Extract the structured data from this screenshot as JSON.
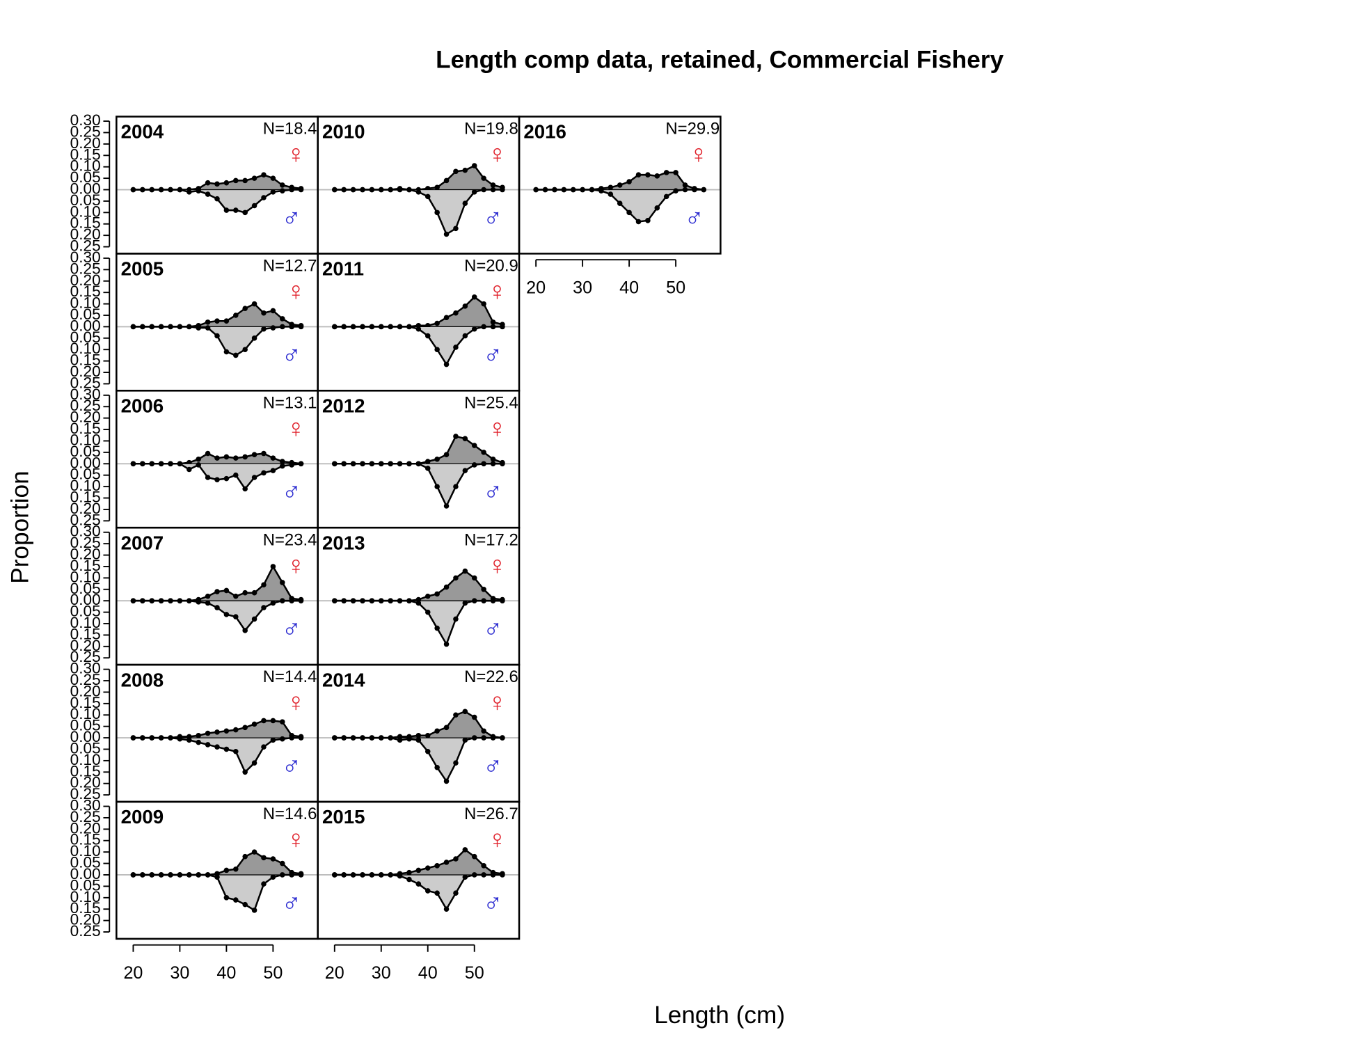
{
  "chart_data": {
    "type": "area",
    "title": "Length comp data, retained, Commercial Fishery",
    "x_label": "Length (cm)",
    "y_label": "Proportion",
    "x": [
      20,
      22,
      24,
      26,
      28,
      30,
      32,
      34,
      36,
      38,
      40,
      42,
      44,
      46,
      48,
      50,
      52,
      54,
      56
    ],
    "xlim": [
      16.4,
      59.6
    ],
    "ylim": [
      -0.28,
      0.32
    ],
    "xticks": [
      20,
      30,
      40,
      50
    ],
    "yticks": [
      {
        "value": 0.3,
        "label": "0.30"
      },
      {
        "value": 0.25,
        "label": "0.25"
      },
      {
        "value": 0.2,
        "label": "0.20"
      },
      {
        "value": 0.15,
        "label": "0.15"
      },
      {
        "value": 0.1,
        "label": "0.10"
      },
      {
        "value": 0.05,
        "label": "0.05"
      },
      {
        "value": 0,
        "label": "0.00"
      },
      {
        "value": -0.05,
        "label": "0.05"
      },
      {
        "value": -0.1,
        "label": "0.10"
      },
      {
        "value": -0.15,
        "label": "0.15"
      },
      {
        "value": -0.2,
        "label": "0.20"
      },
      {
        "value": -0.25,
        "label": "0.25"
      }
    ],
    "female": {
      "symbol": "♀",
      "color": "#e0202a",
      "fill": "#999999"
    },
    "male": {
      "symbol": "♂",
      "color": "#2a2ad0",
      "fill": "#cccccc"
    },
    "panels": [
      {
        "year": "2004",
        "n_label": "N=18.4",
        "female": [
          0,
          0,
          0,
          0,
          0,
          0,
          0,
          0.005,
          0.03,
          0.025,
          0.03,
          0.04,
          0.04,
          0.05,
          0.065,
          0.05,
          0.02,
          0.01,
          0.005
        ],
        "male": [
          0,
          0,
          0,
          0,
          0,
          0,
          -0.01,
          -0.005,
          -0.02,
          -0.04,
          -0.09,
          -0.09,
          -0.1,
          -0.07,
          -0.035,
          -0.01,
          -0.005,
          0,
          0
        ]
      },
      {
        "year": "2005",
        "n_label": "N=12.7",
        "female": [
          0,
          0,
          0,
          0,
          0,
          0,
          0,
          0.005,
          0.02,
          0.025,
          0.025,
          0.05,
          0.08,
          0.1,
          0.06,
          0.07,
          0.035,
          0.01,
          0.005
        ],
        "male": [
          0,
          0,
          0,
          0,
          0,
          0,
          0,
          -0.005,
          -0.005,
          -0.04,
          -0.11,
          -0.125,
          -0.1,
          -0.05,
          -0.01,
          -0.005,
          0,
          0,
          0
        ]
      },
      {
        "year": "2006",
        "n_label": "N=13.1",
        "female": [
          0,
          0,
          0,
          0,
          0,
          0,
          0.005,
          0.02,
          0.045,
          0.025,
          0.03,
          0.025,
          0.03,
          0.04,
          0.045,
          0.025,
          0.01,
          0.005,
          0
        ],
        "male": [
          0,
          0,
          0,
          0,
          0,
          0,
          -0.025,
          -0.005,
          -0.06,
          -0.07,
          -0.065,
          -0.05,
          -0.11,
          -0.06,
          -0.04,
          -0.03,
          -0.01,
          -0.005,
          0
        ]
      },
      {
        "year": "2007",
        "n_label": "N=23.4",
        "female": [
          0,
          0,
          0,
          0,
          0,
          0,
          0,
          0.005,
          0.02,
          0.04,
          0.045,
          0.02,
          0.035,
          0.035,
          0.07,
          0.15,
          0.08,
          0.01,
          0.005
        ],
        "male": [
          0,
          0,
          0,
          0,
          0,
          0,
          0,
          -0.005,
          -0.01,
          -0.03,
          -0.06,
          -0.07,
          -0.13,
          -0.08,
          -0.03,
          -0.01,
          0,
          0,
          0
        ]
      },
      {
        "year": "2008",
        "n_label": "N=14.4",
        "female": [
          0,
          0,
          0,
          0,
          0,
          0.005,
          0.005,
          0.01,
          0.02,
          0.025,
          0.03,
          0.035,
          0.045,
          0.06,
          0.075,
          0.075,
          0.07,
          0.01,
          0.005
        ],
        "male": [
          0,
          0,
          0,
          0,
          0,
          -0.005,
          -0.01,
          -0.02,
          -0.03,
          -0.04,
          -0.05,
          -0.06,
          -0.15,
          -0.11,
          -0.04,
          -0.01,
          -0.005,
          0,
          0
        ]
      },
      {
        "year": "2009",
        "n_label": "N=14.6",
        "female": [
          0,
          0,
          0,
          0,
          0,
          0,
          0,
          0,
          0,
          0.005,
          0.02,
          0.025,
          0.08,
          0.1,
          0.075,
          0.07,
          0.05,
          0.01,
          0.005
        ],
        "male": [
          0,
          0,
          0,
          0,
          0,
          0,
          0,
          0,
          0,
          -0.01,
          -0.1,
          -0.11,
          -0.13,
          -0.155,
          -0.04,
          -0.01,
          0,
          0,
          0
        ]
      },
      {
        "year": "2010",
        "n_label": "N=19.8",
        "female": [
          0,
          0,
          0,
          0,
          0,
          0,
          0,
          0.005,
          0,
          0,
          0.005,
          0.01,
          0.04,
          0.08,
          0.085,
          0.105,
          0.05,
          0.02,
          0.01
        ],
        "male": [
          0,
          0,
          0,
          0,
          0,
          0,
          0,
          0,
          0,
          -0.01,
          -0.03,
          -0.1,
          -0.195,
          -0.17,
          -0.06,
          -0.01,
          0,
          0,
          0
        ]
      },
      {
        "year": "2011",
        "n_label": "N=20.9",
        "female": [
          0,
          0,
          0,
          0,
          0,
          0,
          0,
          0,
          0,
          0.005,
          0.005,
          0.015,
          0.04,
          0.06,
          0.09,
          0.13,
          0.1,
          0.02,
          0.01
        ],
        "male": [
          0,
          0,
          0,
          0,
          0,
          0,
          0,
          0,
          0,
          -0.01,
          -0.04,
          -0.1,
          -0.165,
          -0.09,
          -0.04,
          -0.01,
          0,
          0,
          0
        ]
      },
      {
        "year": "2012",
        "n_label": "N=25.4",
        "female": [
          0,
          0,
          0,
          0,
          0,
          0,
          0,
          0,
          0,
          0,
          0.01,
          0.02,
          0.04,
          0.12,
          0.11,
          0.08,
          0.05,
          0.02,
          0.005
        ],
        "male": [
          0,
          0,
          0,
          0,
          0,
          0,
          0,
          0,
          0,
          0,
          -0.02,
          -0.1,
          -0.185,
          -0.1,
          -0.03,
          -0.005,
          0,
          0,
          0
        ]
      },
      {
        "year": "2013",
        "n_label": "N=17.2",
        "female": [
          0,
          0,
          0,
          0,
          0,
          0,
          0,
          0,
          0,
          0.005,
          0.02,
          0.03,
          0.06,
          0.1,
          0.13,
          0.1,
          0.05,
          0.01,
          0.005
        ],
        "male": [
          0,
          0,
          0,
          0,
          0,
          0,
          0,
          0,
          0,
          -0.01,
          -0.05,
          -0.12,
          -0.19,
          -0.08,
          -0.01,
          0,
          0,
          0,
          0
        ]
      },
      {
        "year": "2014",
        "n_label": "N=22.6",
        "female": [
          0,
          0,
          0,
          0,
          0,
          0,
          0,
          0.005,
          0.005,
          0.01,
          0.01,
          0.03,
          0.045,
          0.1,
          0.115,
          0.09,
          0.03,
          0.005,
          0
        ],
        "male": [
          0,
          0,
          0,
          0,
          0,
          0,
          0,
          -0.01,
          -0.005,
          -0.01,
          -0.06,
          -0.13,
          -0.19,
          -0.11,
          -0.01,
          0,
          0,
          0,
          0
        ]
      },
      {
        "year": "2015",
        "n_label": "N=26.7",
        "female": [
          0,
          0,
          0,
          0,
          0,
          0,
          0,
          0.005,
          0.01,
          0.02,
          0.03,
          0.04,
          0.055,
          0.07,
          0.11,
          0.08,
          0.04,
          0.01,
          0.005
        ],
        "male": [
          0,
          0,
          0,
          0,
          0,
          0,
          0,
          -0.005,
          -0.02,
          -0.04,
          -0.07,
          -0.08,
          -0.15,
          -0.08,
          -0.01,
          0,
          0,
          0,
          0
        ]
      },
      {
        "year": "2016",
        "n_label": "N=29.9",
        "female": [
          0,
          0,
          0,
          0,
          0,
          0,
          0,
          0.005,
          0.01,
          0.02,
          0.035,
          0.065,
          0.065,
          0.06,
          0.075,
          0.075,
          0.02,
          0.005,
          0
        ],
        "male": [
          0,
          0,
          0,
          0,
          0,
          0,
          0,
          -0.005,
          -0.02,
          -0.06,
          -0.1,
          -0.14,
          -0.135,
          -0.08,
          -0.03,
          -0.005,
          0,
          0,
          0
        ]
      }
    ]
  }
}
